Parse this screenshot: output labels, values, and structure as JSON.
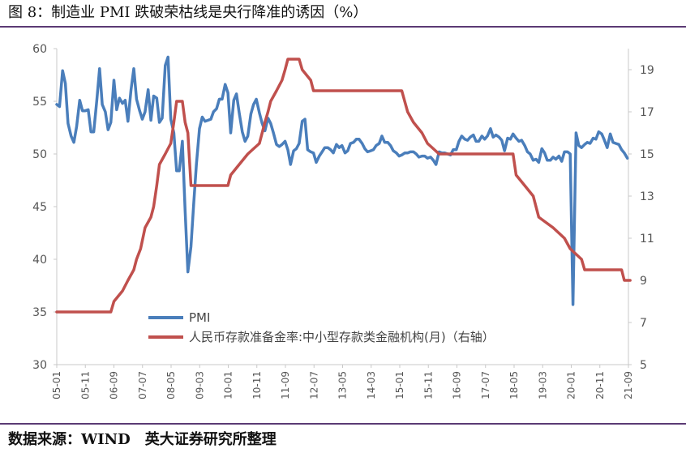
{
  "title": "图 8：制造业 PMI 跌破荣枯线是央行降准的诱因（%）",
  "source": "数据来源：WIND　英大证券研究所整理",
  "chart_data": {
    "type": "line",
    "left_axis": {
      "ylim": [
        30,
        60
      ],
      "ticks": [
        "30",
        "35",
        "40",
        "45",
        "50",
        "55",
        "60"
      ]
    },
    "right_axis": {
      "ylim": [
        5,
        20
      ],
      "ticks": [
        "5",
        "7",
        "9",
        "11",
        "13",
        "15",
        "17",
        "19"
      ]
    },
    "x_range": [
      2005.0,
      2021.7
    ],
    "x_ticks": [
      "05-01",
      "05-11",
      "06-09",
      "07-07",
      "08-05",
      "09-03",
      "10-01",
      "10-11",
      "11-09",
      "12-07",
      "13-05",
      "14-03",
      "15-01",
      "15-11",
      "16-09",
      "17-07",
      "18-05",
      "19-03",
      "20-01",
      "20-11",
      "21-09"
    ],
    "legend": [
      {
        "name": "PMI",
        "color": "#4a7ebb"
      },
      {
        "name": "人民币存款准备金率:中小型存款类金融机构(月)（右轴）",
        "color": "#c0504d"
      }
    ],
    "series": [
      {
        "name": "PMI",
        "axis": "left",
        "color": "#4a7ebb",
        "points": [
          [
            2005.0,
            54.7
          ],
          [
            2005.08,
            54.5
          ],
          [
            2005.17,
            57.9
          ],
          [
            2005.25,
            56.7
          ],
          [
            2005.33,
            52.9
          ],
          [
            2005.42,
            51.7
          ],
          [
            2005.5,
            51.1
          ],
          [
            2005.58,
            52.6
          ],
          [
            2005.67,
            55.1
          ],
          [
            2005.75,
            54.1
          ],
          [
            2005.83,
            54.1
          ],
          [
            2005.92,
            54.2
          ],
          [
            2006.0,
            52.1
          ],
          [
            2006.08,
            52.1
          ],
          [
            2006.17,
            55.1
          ],
          [
            2006.25,
            58.1
          ],
          [
            2006.33,
            54.7
          ],
          [
            2006.42,
            54.0
          ],
          [
            2006.5,
            52.3
          ],
          [
            2006.58,
            53.0
          ],
          [
            2006.67,
            57.0
          ],
          [
            2006.75,
            54.2
          ],
          [
            2006.83,
            55.3
          ],
          [
            2006.92,
            54.8
          ],
          [
            2007.0,
            55.1
          ],
          [
            2007.08,
            53.1
          ],
          [
            2007.17,
            56.1
          ],
          [
            2007.25,
            58.1
          ],
          [
            2007.33,
            55.2
          ],
          [
            2007.42,
            54.1
          ],
          [
            2007.5,
            53.3
          ],
          [
            2007.58,
            54.0
          ],
          [
            2007.67,
            56.1
          ],
          [
            2007.75,
            53.2
          ],
          [
            2007.83,
            55.5
          ],
          [
            2007.92,
            55.3
          ],
          [
            2008.0,
            53.0
          ],
          [
            2008.08,
            53.4
          ],
          [
            2008.17,
            58.4
          ],
          [
            2008.25,
            59.2
          ],
          [
            2008.33,
            53.3
          ],
          [
            2008.42,
            52.0
          ],
          [
            2008.5,
            48.4
          ],
          [
            2008.58,
            48.4
          ],
          [
            2008.67,
            51.2
          ],
          [
            2008.75,
            44.6
          ],
          [
            2008.83,
            38.8
          ],
          [
            2008.92,
            41.2
          ],
          [
            2009.0,
            45.3
          ],
          [
            2009.08,
            49.0
          ],
          [
            2009.17,
            52.4
          ],
          [
            2009.25,
            53.5
          ],
          [
            2009.33,
            53.1
          ],
          [
            2009.42,
            53.2
          ],
          [
            2009.5,
            53.3
          ],
          [
            2009.58,
            54.0
          ],
          [
            2009.67,
            54.3
          ],
          [
            2009.75,
            55.2
          ],
          [
            2009.83,
            55.2
          ],
          [
            2009.92,
            56.6
          ],
          [
            2010.0,
            55.8
          ],
          [
            2010.08,
            52.0
          ],
          [
            2010.17,
            55.1
          ],
          [
            2010.25,
            55.7
          ],
          [
            2010.33,
            53.9
          ],
          [
            2010.42,
            52.1
          ],
          [
            2010.5,
            51.2
          ],
          [
            2010.58,
            51.7
          ],
          [
            2010.67,
            53.8
          ],
          [
            2010.75,
            54.7
          ],
          [
            2010.83,
            55.2
          ],
          [
            2010.92,
            53.9
          ],
          [
            2011.0,
            52.9
          ],
          [
            2011.08,
            52.2
          ],
          [
            2011.17,
            53.4
          ],
          [
            2011.25,
            52.9
          ],
          [
            2011.33,
            52.0
          ],
          [
            2011.42,
            50.9
          ],
          [
            2011.5,
            50.7
          ],
          [
            2011.58,
            50.9
          ],
          [
            2011.67,
            51.2
          ],
          [
            2011.75,
            50.4
          ],
          [
            2011.83,
            49.0
          ],
          [
            2011.92,
            50.3
          ],
          [
            2012.0,
            50.5
          ],
          [
            2012.08,
            51.0
          ],
          [
            2012.17,
            53.1
          ],
          [
            2012.25,
            53.3
          ],
          [
            2012.33,
            50.4
          ],
          [
            2012.42,
            50.2
          ],
          [
            2012.5,
            50.1
          ],
          [
            2012.58,
            49.2
          ],
          [
            2012.67,
            49.8
          ],
          [
            2012.75,
            50.2
          ],
          [
            2012.83,
            50.6
          ],
          [
            2012.92,
            50.6
          ],
          [
            2013.0,
            50.4
          ],
          [
            2013.08,
            50.1
          ],
          [
            2013.17,
            50.9
          ],
          [
            2013.25,
            50.6
          ],
          [
            2013.33,
            50.8
          ],
          [
            2013.42,
            50.1
          ],
          [
            2013.5,
            50.3
          ],
          [
            2013.58,
            51.0
          ],
          [
            2013.67,
            51.1
          ],
          [
            2013.75,
            51.4
          ],
          [
            2013.83,
            51.4
          ],
          [
            2013.92,
            51.0
          ],
          [
            2014.0,
            50.5
          ],
          [
            2014.08,
            50.2
          ],
          [
            2014.17,
            50.3
          ],
          [
            2014.25,
            50.4
          ],
          [
            2014.33,
            50.8
          ],
          [
            2014.42,
            51.0
          ],
          [
            2014.5,
            51.7
          ],
          [
            2014.58,
            51.1
          ],
          [
            2014.67,
            51.1
          ],
          [
            2014.75,
            50.8
          ],
          [
            2014.83,
            50.3
          ],
          [
            2014.92,
            50.1
          ],
          [
            2015.0,
            49.8
          ],
          [
            2015.08,
            49.9
          ],
          [
            2015.17,
            50.1
          ],
          [
            2015.25,
            50.1
          ],
          [
            2015.33,
            50.2
          ],
          [
            2015.42,
            50.2
          ],
          [
            2015.5,
            50.0
          ],
          [
            2015.58,
            49.7
          ],
          [
            2015.67,
            49.8
          ],
          [
            2015.75,
            49.8
          ],
          [
            2015.83,
            49.6
          ],
          [
            2015.92,
            49.7
          ],
          [
            2016.0,
            49.4
          ],
          [
            2016.08,
            49.0
          ],
          [
            2016.17,
            50.2
          ],
          [
            2016.25,
            50.1
          ],
          [
            2016.33,
            50.1
          ],
          [
            2016.42,
            50.0
          ],
          [
            2016.5,
            49.9
          ],
          [
            2016.58,
            50.4
          ],
          [
            2016.67,
            50.4
          ],
          [
            2016.75,
            51.2
          ],
          [
            2016.83,
            51.7
          ],
          [
            2016.92,
            51.4
          ],
          [
            2017.0,
            51.3
          ],
          [
            2017.08,
            51.6
          ],
          [
            2017.17,
            51.8
          ],
          [
            2017.25,
            51.2
          ],
          [
            2017.33,
            51.2
          ],
          [
            2017.42,
            51.7
          ],
          [
            2017.5,
            51.4
          ],
          [
            2017.58,
            51.7
          ],
          [
            2017.67,
            52.4
          ],
          [
            2017.75,
            51.6
          ],
          [
            2017.83,
            51.8
          ],
          [
            2017.92,
            51.6
          ],
          [
            2018.0,
            51.3
          ],
          [
            2018.08,
            50.3
          ],
          [
            2018.17,
            51.5
          ],
          [
            2018.25,
            51.4
          ],
          [
            2018.33,
            51.9
          ],
          [
            2018.42,
            51.5
          ],
          [
            2018.5,
            51.2
          ],
          [
            2018.58,
            51.3
          ],
          [
            2018.67,
            50.8
          ],
          [
            2018.75,
            50.2
          ],
          [
            2018.83,
            50.0
          ],
          [
            2018.92,
            49.4
          ],
          [
            2019.0,
            49.5
          ],
          [
            2019.08,
            49.2
          ],
          [
            2019.17,
            50.5
          ],
          [
            2019.25,
            50.1
          ],
          [
            2019.33,
            49.4
          ],
          [
            2019.42,
            49.4
          ],
          [
            2019.5,
            49.7
          ],
          [
            2019.58,
            49.5
          ],
          [
            2019.67,
            49.8
          ],
          [
            2019.75,
            49.3
          ],
          [
            2019.83,
            50.2
          ],
          [
            2019.92,
            50.2
          ],
          [
            2020.0,
            50.0
          ],
          [
            2020.08,
            35.7
          ],
          [
            2020.17,
            52.0
          ],
          [
            2020.25,
            50.8
          ],
          [
            2020.33,
            50.6
          ],
          [
            2020.42,
            50.9
          ],
          [
            2020.5,
            51.1
          ],
          [
            2020.58,
            51.0
          ],
          [
            2020.67,
            51.5
          ],
          [
            2020.75,
            51.4
          ],
          [
            2020.83,
            52.1
          ],
          [
            2020.92,
            51.9
          ],
          [
            2021.0,
            51.3
          ],
          [
            2021.08,
            50.6
          ],
          [
            2021.17,
            51.9
          ],
          [
            2021.25,
            51.1
          ],
          [
            2021.33,
            51.0
          ],
          [
            2021.42,
            50.9
          ],
          [
            2021.5,
            50.4
          ],
          [
            2021.58,
            50.1
          ],
          [
            2021.67,
            49.6
          ]
        ]
      },
      {
        "name": "人民币存款准备金率:中小型存款类金融机构(月)（右轴）",
        "axis": "right",
        "color": "#c0504d",
        "points": [
          [
            2005.0,
            7.5
          ],
          [
            2006.58,
            7.5
          ],
          [
            2006.67,
            8.0
          ],
          [
            2006.92,
            8.5
          ],
          [
            2007.08,
            9.0
          ],
          [
            2007.25,
            9.5
          ],
          [
            2007.33,
            10.0
          ],
          [
            2007.45,
            10.5
          ],
          [
            2007.58,
            11.5
          ],
          [
            2007.75,
            12.0
          ],
          [
            2007.83,
            12.5
          ],
          [
            2007.92,
            13.5
          ],
          [
            2008.0,
            14.5
          ],
          [
            2008.17,
            15.0
          ],
          [
            2008.33,
            15.5
          ],
          [
            2008.42,
            16.5
          ],
          [
            2008.5,
            17.5
          ],
          [
            2008.67,
            17.5
          ],
          [
            2008.75,
            16.5
          ],
          [
            2008.83,
            16.0
          ],
          [
            2008.92,
            13.5
          ],
          [
            2010.0,
            13.5
          ],
          [
            2010.08,
            14.0
          ],
          [
            2010.33,
            14.5
          ],
          [
            2010.58,
            15.0
          ],
          [
            2010.92,
            15.5
          ],
          [
            2011.0,
            16.0
          ],
          [
            2011.08,
            16.5
          ],
          [
            2011.17,
            17.0
          ],
          [
            2011.25,
            17.5
          ],
          [
            2011.42,
            18.0
          ],
          [
            2011.58,
            18.5
          ],
          [
            2011.67,
            19.0
          ],
          [
            2011.75,
            19.5
          ],
          [
            2012.08,
            19.5
          ],
          [
            2012.17,
            19.0
          ],
          [
            2012.42,
            18.5
          ],
          [
            2012.5,
            18.0
          ],
          [
            2015.08,
            18.0
          ],
          [
            2015.25,
            17.0
          ],
          [
            2015.42,
            16.5
          ],
          [
            2015.67,
            16.0
          ],
          [
            2015.83,
            15.5
          ],
          [
            2016.17,
            15.0
          ],
          [
            2018.33,
            15.0
          ],
          [
            2018.42,
            14.0
          ],
          [
            2018.67,
            13.5
          ],
          [
            2018.92,
            13.0
          ],
          [
            2019.08,
            12.0
          ],
          [
            2019.5,
            11.5
          ],
          [
            2019.83,
            11.0
          ],
          [
            2020.0,
            10.5
          ],
          [
            2020.33,
            10.0
          ],
          [
            2020.42,
            9.5
          ],
          [
            2021.5,
            9.5
          ],
          [
            2021.58,
            9.0
          ],
          [
            2021.75,
            9.0
          ]
        ]
      }
    ]
  }
}
